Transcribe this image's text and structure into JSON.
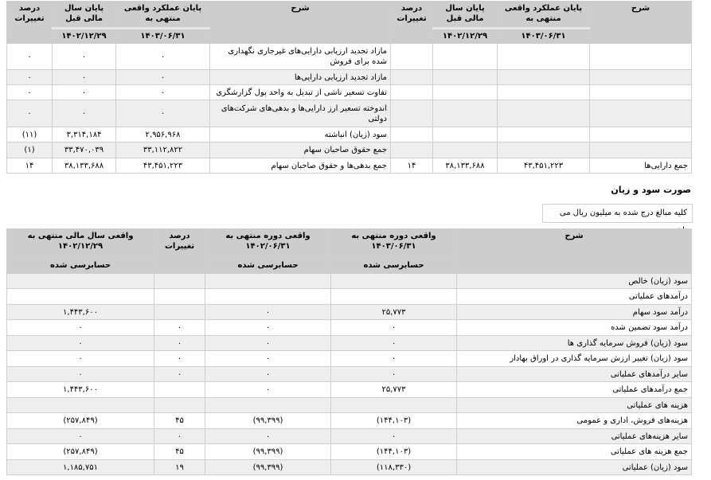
{
  "balance_sheet": {
    "headers": {
      "desc": "شرح",
      "current": "پایان عملکرد واقعی منتهی به",
      "previous": "پایان سال مالی قبل",
      "percent": "درصد تغییرات",
      "current_date": "۱۴۰۳/۰۶/۳۱",
      "previous_date": "۱۴۰۲/۱۲/۲۹"
    },
    "rows": [
      {
        "right_desc": "",
        "right_cur": "",
        "right_prev": "",
        "right_pct": "",
        "desc": "مازاد تجدید ارزیابی دارایی‌های غیرجاری نگهداری شده برای فروش",
        "cur": "۰",
        "prev": "۰",
        "pct": "۰"
      },
      {
        "right_desc": "",
        "right_cur": "",
        "right_prev": "",
        "right_pct": "",
        "desc": "مازاد تجدید ارزیابی دارایی‌ها",
        "cur": "۰",
        "prev": "۰",
        "pct": "۰"
      },
      {
        "right_desc": "",
        "right_cur": "",
        "right_prev": "",
        "right_pct": "",
        "desc": "تفاوت تسعیر ناشی از تبدیل به واحد پول گزارشگری",
        "cur": "۰",
        "prev": "۰",
        "pct": "۰"
      },
      {
        "right_desc": "",
        "right_cur": "",
        "right_prev": "",
        "right_pct": "",
        "desc": "اندوخته تسعیر ارز دارایی‌ها و بدهی‌های شرکت‌های دولتی",
        "cur": "۰",
        "prev": "۰",
        "pct": "۰"
      },
      {
        "right_desc": "",
        "right_cur": "",
        "right_prev": "",
        "right_pct": "",
        "desc": "سود (زیان) انباشته",
        "cur": "۲,۹۵۶,۹۶۸",
        "prev": "۳,۳۱۴,۱۸۴",
        "pct": "(۱۱)"
      },
      {
        "right_desc": "",
        "right_cur": "",
        "right_prev": "",
        "right_pct": "",
        "desc": "جمع حقوق صاحبان سهام",
        "cur": "۳۳,۱۱۲,۸۲۲",
        "prev": "۳۳,۴۷۰,۰۳۹",
        "pct": "(۱)"
      },
      {
        "right_desc": "جمع دارایی‌ها",
        "right_cur": "۴۳,۴۵۱,۲۲۳",
        "right_prev": "۳۸,۱۳۳,۶۸۸",
        "right_pct": "۱۴",
        "desc": "جمع بدهی‌ها و حقوق صاحبان سهام",
        "cur": "۴۳,۴۵۱,۲۲۳",
        "prev": "۳۸,۱۳۳,۶۸۸",
        "pct": "۱۴"
      }
    ]
  },
  "income_statement": {
    "title": "صورت سود و زیان",
    "note": "کلیه مبالغ درج شده به میلیون ریال می باشد",
    "headers": {
      "desc": "شرح",
      "current": "واقعی دوره منتهی به ۱۴۰۳/۰۶/۳۱",
      "previous": "واقعی دوره منتهی به ۱۴۰۲/۰۶/۳۱",
      "percent": "درصد تغییرات",
      "year": "واقعی سال مالی منتهی به ۱۴۰۲/۱۲/۲۹",
      "audited": "حسابرسی شده"
    },
    "rows": [
      {
        "desc": "سود (زیان) خالص",
        "cur": "",
        "prev": "",
        "pct": "",
        "year": ""
      },
      {
        "desc": "درآمدهای عملیاتی",
        "cur": "",
        "prev": "",
        "pct": "",
        "year": ""
      },
      {
        "desc": "درآمد سود سهام",
        "cur": "۲۵,۷۷۳",
        "prev": "۰",
        "pct": "",
        "year": "۱,۴۴۳,۶۰۰"
      },
      {
        "desc": "درآمد سود تضمین شده",
        "cur": "۰",
        "prev": "۰",
        "pct": "۰",
        "year": "۰"
      },
      {
        "desc": "سود (زیان) فروش سرمایه گذاری ها",
        "cur": "۰",
        "prev": "۰",
        "pct": "۰",
        "year": "۰"
      },
      {
        "desc": "سود (زیان) تغییر ارزش سرمایه گذاری در اوراق بهادار",
        "cur": "۰",
        "prev": "۰",
        "pct": "۰",
        "year": "۰"
      },
      {
        "desc": "سایر درآمدهای عملیاتی",
        "cur": "۰",
        "prev": "۰",
        "pct": "۰",
        "year": "۰"
      },
      {
        "desc": "جمع درآمدهای عملیاتی",
        "cur": "۲۵,۷۷۳",
        "prev": "۰",
        "pct": "",
        "year": "۱,۴۴۳,۶۰۰"
      },
      {
        "desc": "هزینه های عملیاتی",
        "cur": "",
        "prev": "",
        "pct": "",
        "year": ""
      },
      {
        "desc": "هزینه‌های فروش، اداری و عمومی",
        "cur": "(۱۴۴,۱۰۳)",
        "prev": "(۹۹,۳۹۹)",
        "pct": "۴۵",
        "year": "(۲۵۷,۸۴۹)"
      },
      {
        "desc": "سایر هزینه‌های عملیاتی",
        "cur": "۰",
        "prev": "۰",
        "pct": "۰",
        "year": "۰"
      },
      {
        "desc": "جمع هزینه های عملیاتی",
        "cur": "(۱۴۴,۱۰۳)",
        "prev": "(۹۹,۳۹۹)",
        "pct": "۴۵",
        "year": "(۲۵۷,۸۴۹)"
      },
      {
        "desc": "سود (زیان) عملیاتی",
        "cur": "(۱۱۸,۳۳۰)",
        "prev": "(۹۹,۳۹۹)",
        "pct": "۱۹",
        "year": "۱,۱۸۵,۷۵۱"
      }
    ]
  }
}
